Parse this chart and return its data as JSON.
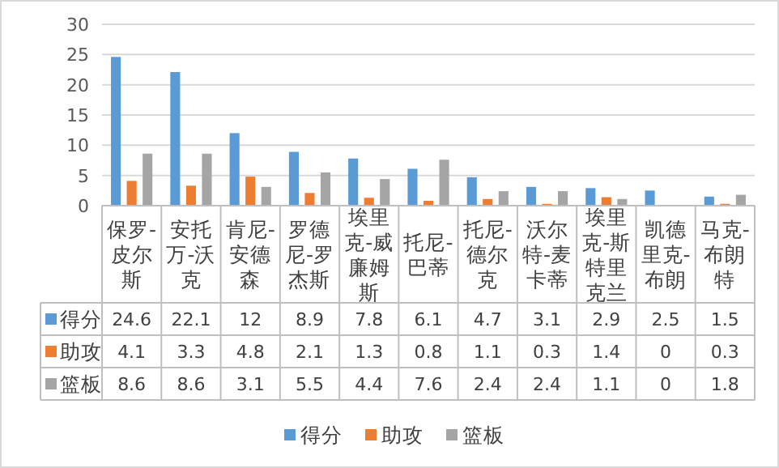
{
  "chart_data": {
    "type": "bar",
    "categories": [
      "保罗-皮尔斯",
      "安托万-沃克",
      "肯尼-安德森",
      "罗德尼-罗杰斯",
      "埃里克-威廉姆斯",
      "托尼-巴蒂",
      "托尼-德尔克",
      "沃尔特-麦卡蒂",
      "埃里克-斯特里克兰",
      "凯德里克-布朗",
      "马克-布朗特"
    ],
    "series": [
      {
        "name": "得分",
        "color": "#5b9bd5",
        "values": [
          24.6,
          22.1,
          12,
          8.9,
          7.8,
          6.1,
          4.7,
          3.1,
          2.9,
          2.5,
          1.5
        ]
      },
      {
        "name": "助攻",
        "color": "#ed7d31",
        "values": [
          4.1,
          3.3,
          4.8,
          2.1,
          1.3,
          0.8,
          1.1,
          0.3,
          1.4,
          0,
          0.3
        ]
      },
      {
        "name": "篮板",
        "color": "#a5a5a5",
        "values": [
          8.6,
          8.6,
          3.1,
          5.5,
          4.4,
          7.6,
          2.4,
          2.4,
          1.1,
          0,
          1.8
        ]
      }
    ],
    "ylim": [
      0,
      30
    ],
    "yticks": [
      0,
      5,
      10,
      15,
      20,
      25,
      30
    ],
    "grid": "y",
    "legend": "bottom",
    "data_labels": true
  }
}
